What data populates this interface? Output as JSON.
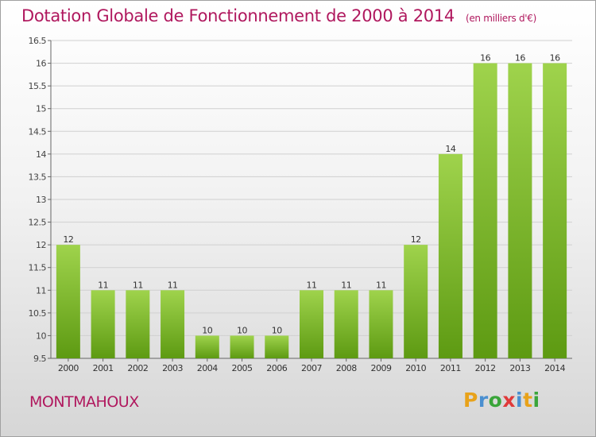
{
  "header": {
    "title": "Dotation Globale de Fonctionnement de 2000 à 2014",
    "unit": "(en milliers d'€)"
  },
  "footer": {
    "commune": "MONTMAHOUX",
    "logo_text": "Proxiti",
    "logo_colors": [
      "#e8a21a",
      "#4a8fd0",
      "#3aa53a",
      "#e03a3a",
      "#4a8fd0",
      "#e8a21a",
      "#3aa53a"
    ]
  },
  "colors": {
    "accent": "#b0185e",
    "bar_light": "#9fd34c",
    "bar_dark": "#5d9a12"
  },
  "chart_data": {
    "type": "bar",
    "categories": [
      "2000",
      "2001",
      "2002",
      "2003",
      "2004",
      "2005",
      "2006",
      "2007",
      "2008",
      "2009",
      "2010",
      "2011",
      "2012",
      "2013",
      "2014"
    ],
    "values": [
      12,
      11,
      11,
      11,
      10,
      10,
      10,
      11,
      11,
      11,
      12,
      14,
      16,
      16,
      16
    ],
    "value_labels": [
      "12",
      "11",
      "11",
      "11",
      "10",
      "10",
      "10",
      "11",
      "11",
      "11",
      "12",
      "14",
      "16",
      "16",
      "16"
    ],
    "ylim": [
      9.5,
      16.5
    ],
    "yticks": [
      9.5,
      10,
      10.5,
      11,
      11.5,
      12,
      12.5,
      13,
      13.5,
      14,
      14.5,
      15,
      15.5,
      16,
      16.5
    ],
    "ytick_labels": [
      "9.5",
      "10",
      "10.5",
      "11",
      "11.5",
      "12",
      "12.5",
      "13",
      "13.5",
      "14",
      "14.5",
      "15",
      "15.5",
      "16",
      "16.5"
    ],
    "grid": true,
    "title": "Dotation Globale de Fonctionnement de 2000 à 2014",
    "xlabel": "",
    "ylabel": ""
  }
}
